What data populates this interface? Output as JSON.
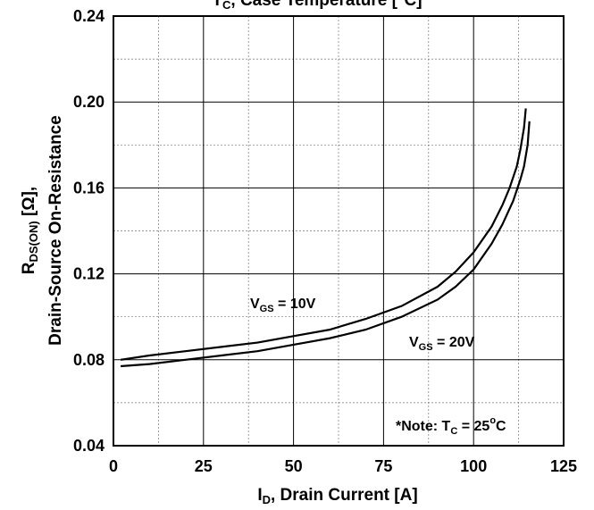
{
  "chart_data": {
    "type": "line",
    "title_cut": {
      "main": "T",
      "sub": "C",
      "rest": ", Case Temperature [°C]"
    },
    "xlabel": {
      "main": "I",
      "sub": "D",
      "rest": ", Drain Current [A]"
    },
    "ylabel": {
      "line1_main": "R",
      "line1_sub": "DS(ON)",
      "line1_rest": " [Ω],",
      "line2": "Drain-Source On-Resistance"
    },
    "xlim": [
      0,
      125
    ],
    "ylim": [
      0.04,
      0.24
    ],
    "x_ticks": [
      0,
      25,
      50,
      75,
      100,
      125
    ],
    "x_tick_labels": [
      "0",
      "25",
      "50",
      "75",
      "100",
      "125"
    ],
    "y_ticks": [
      0.04,
      0.08,
      0.12,
      0.16,
      0.2,
      0.24
    ],
    "y_tick_labels": [
      "0.04",
      "0.08",
      "0.12",
      "0.16",
      "0.20",
      "0.24"
    ],
    "grid": true,
    "series": [
      {
        "name": "VGS = 10V",
        "label": {
          "main": "V",
          "sub": "GS",
          "rest": " = 10V"
        },
        "x": [
          2,
          10,
          20,
          30,
          40,
          50,
          60,
          70,
          80,
          90,
          95,
          100,
          105,
          108,
          110,
          112,
          113,
          114,
          114.5
        ],
        "y": [
          0.08,
          0.082,
          0.084,
          0.086,
          0.088,
          0.091,
          0.094,
          0.099,
          0.105,
          0.114,
          0.121,
          0.13,
          0.142,
          0.152,
          0.16,
          0.17,
          0.178,
          0.188,
          0.197
        ]
      },
      {
        "name": "VGS = 20V",
        "label": {
          "main": "V",
          "sub": "GS",
          "rest": " = 20V"
        },
        "x": [
          2,
          10,
          20,
          30,
          40,
          50,
          60,
          70,
          80,
          90,
          95,
          100,
          105,
          108,
          111,
          113,
          114,
          115,
          115.5
        ],
        "y": [
          0.077,
          0.078,
          0.08,
          0.082,
          0.084,
          0.087,
          0.09,
          0.094,
          0.1,
          0.108,
          0.114,
          0.122,
          0.134,
          0.143,
          0.154,
          0.164,
          0.17,
          0.18,
          0.191
        ]
      }
    ],
    "note": {
      "prefix": "*Note: T",
      "sub": "C",
      "mid": " = 25",
      "sup": "o",
      "suffix": "C"
    }
  }
}
